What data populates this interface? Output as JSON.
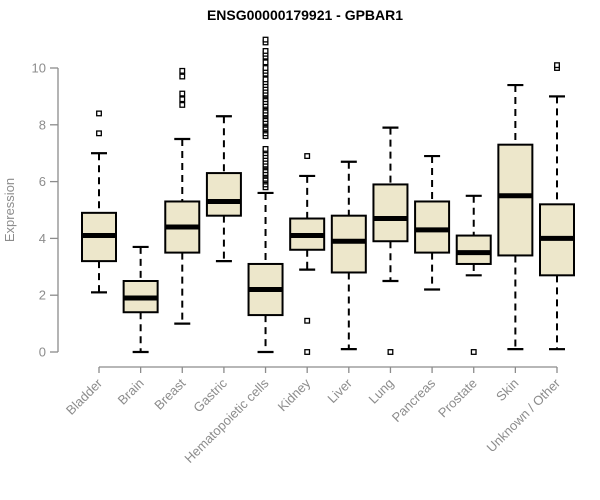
{
  "chart_data": {
    "type": "boxplot",
    "title": "ENSG00000179921 - GPBAR1",
    "ylabel": "Expression",
    "xlabel": "",
    "ylim": [
      0,
      10
    ],
    "yticks": [
      "0",
      "2",
      "4",
      "6",
      "8",
      "10"
    ],
    "grid": false,
    "legend": false,
    "categories": [
      "Bladder",
      "Brain",
      "Breast",
      "Gastric",
      "Hematopoietic cells",
      "Kidney",
      "Liver",
      "Lung",
      "Pancreas",
      "Prostate",
      "Skin",
      "Unknown / Other"
    ],
    "series": [
      {
        "category": "Bladder",
        "whisker_low": 2.1,
        "q1": 3.2,
        "median": 4.1,
        "q3": 4.9,
        "whisker_high": 7.0,
        "outliers": [
          7.7,
          8.4
        ]
      },
      {
        "category": "Brain",
        "whisker_low": 0.0,
        "q1": 1.4,
        "median": 1.9,
        "q3": 2.5,
        "whisker_high": 3.7,
        "outliers": []
      },
      {
        "category": "Breast",
        "whisker_low": 1.0,
        "q1": 3.5,
        "median": 4.4,
        "q3": 5.3,
        "whisker_high": 7.5,
        "outliers": [
          8.7,
          8.9,
          9.1,
          9.7,
          9.9
        ]
      },
      {
        "category": "Gastric",
        "whisker_low": 3.2,
        "q1": 4.8,
        "median": 5.3,
        "q3": 6.3,
        "whisker_high": 8.3,
        "outliers": []
      },
      {
        "category": "Hematopoietic cells",
        "whisker_low": 0.0,
        "q1": 1.3,
        "median": 2.2,
        "q3": 3.1,
        "whisker_high": 5.6,
        "outliers": [
          5.8,
          5.9,
          6.0,
          6.05,
          6.1,
          6.2,
          6.25,
          6.3,
          6.4,
          6.5,
          6.55,
          6.6,
          6.7,
          6.8,
          6.9,
          7.0,
          7.1,
          7.15,
          7.6,
          7.7,
          7.8,
          7.85,
          7.9,
          8.0,
          8.05,
          8.1,
          8.2,
          8.3,
          8.35,
          8.4,
          8.5,
          8.6,
          8.65,
          8.7,
          8.8,
          8.9,
          9.0,
          9.05,
          9.1,
          9.2,
          9.3,
          9.4,
          9.5,
          9.6,
          9.8,
          9.9,
          10.0,
          10.2,
          10.4,
          10.5,
          10.6,
          10.9,
          11.0
        ]
      },
      {
        "category": "Kidney",
        "whisker_low": 2.9,
        "q1": 3.6,
        "median": 4.1,
        "q3": 4.7,
        "whisker_high": 6.2,
        "outliers": [
          6.9,
          1.1,
          0.0
        ]
      },
      {
        "category": "Liver",
        "whisker_low": 0.1,
        "q1": 2.8,
        "median": 3.9,
        "q3": 4.8,
        "whisker_high": 6.7,
        "outliers": []
      },
      {
        "category": "Lung",
        "whisker_low": 2.5,
        "q1": 3.9,
        "median": 4.7,
        "q3": 5.9,
        "whisker_high": 7.9,
        "outliers": [
          0.0
        ]
      },
      {
        "category": "Pancreas",
        "whisker_low": 2.2,
        "q1": 3.5,
        "median": 4.3,
        "q3": 5.3,
        "whisker_high": 6.9,
        "outliers": []
      },
      {
        "category": "Prostate",
        "whisker_low": 2.7,
        "q1": 3.1,
        "median": 3.5,
        "q3": 4.1,
        "whisker_high": 5.5,
        "outliers": [
          0.0
        ]
      },
      {
        "category": "Skin",
        "whisker_low": 0.1,
        "q1": 3.4,
        "median": 5.5,
        "q3": 7.3,
        "whisker_high": 9.4,
        "outliers": []
      },
      {
        "category": "Unknown / Other",
        "whisker_low": 0.1,
        "q1": 2.7,
        "median": 4.0,
        "q3": 5.2,
        "whisker_high": 9.0,
        "outliers": [
          10.0,
          10.1
        ]
      }
    ],
    "colors": {
      "box_fill": "#ede7cb",
      "box_border": "#000000",
      "median": "#000000",
      "whisker": "#000000",
      "outlier": "#000000",
      "axis": "#8c8c8c",
      "title": "#000000",
      "background": "#ffffff"
    }
  }
}
